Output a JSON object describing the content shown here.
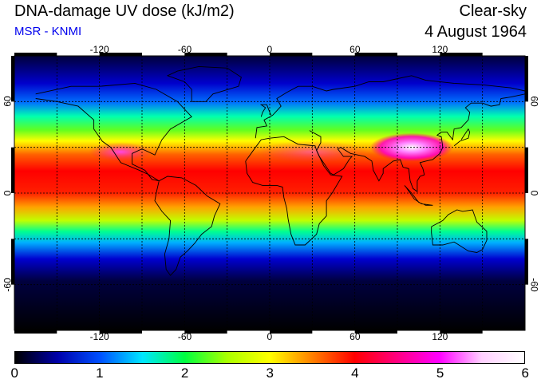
{
  "header": {
    "title": "DNA-damage UV dose (kJ/m2)",
    "subtitle": "MSR - KNMI",
    "sky": "Clear-sky",
    "date": "4 August 1964"
  },
  "map": {
    "lon_ticks": [
      "-120",
      "-60",
      "0",
      "60",
      "120"
    ],
    "lon_values": [
      -120,
      -60,
      0,
      60,
      120
    ],
    "lat_ticks": [
      "60",
      "0",
      "-60"
    ],
    "lat_values": [
      60,
      0,
      -60
    ],
    "lon_range": [
      -180,
      180
    ],
    "lat_range": [
      -90,
      90
    ],
    "gridlines": true
  },
  "colorbar": {
    "labels": [
      "0",
      "1",
      "2",
      "3",
      "4",
      "5",
      "6"
    ],
    "range": [
      0,
      6
    ],
    "colors": [
      "#000000",
      "#0000aa",
      "#0050ff",
      "#00e6ff",
      "#00ff40",
      "#aaff00",
      "#ffff00",
      "#ff8000",
      "#ff0000",
      "#ff0080",
      "#ff00ff",
      "#ffd0ff",
      "#ffffff"
    ]
  }
}
